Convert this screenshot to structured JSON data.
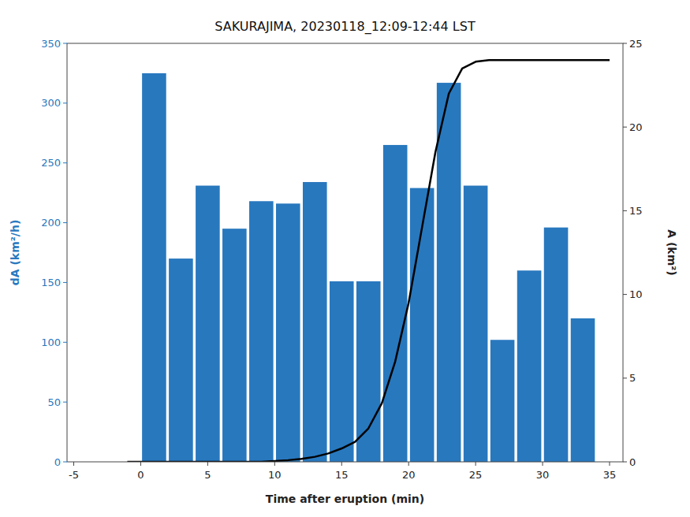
{
  "chart_data": {
    "type": "bar",
    "title": "SAKURAJIMA, 20230118_12:09-12:44 LST",
    "x_label": "Time after eruption (min)",
    "y_label": "dA (km²/h)",
    "y2_label": "A (km²)",
    "xlim": [
      -5.5,
      36
    ],
    "xticks": [
      -5,
      0,
      5,
      10,
      15,
      20,
      25,
      30,
      35
    ],
    "ylim": [
      0,
      350
    ],
    "yticks": [
      0,
      50,
      100,
      150,
      200,
      250,
      300,
      350
    ],
    "y2lim": [
      0,
      25
    ],
    "y2ticks": [
      0,
      5,
      10,
      15,
      20,
      25
    ],
    "grid": false,
    "series": [
      {
        "type": "bar",
        "color": "#2878be",
        "x": [
          1,
          3,
          5,
          7,
          9,
          11,
          13,
          15,
          17,
          19,
          21,
          23,
          25,
          27,
          29,
          31,
          33
        ],
        "values": [
          325,
          170,
          231,
          195,
          218,
          216,
          234,
          151,
          151,
          265,
          229,
          317,
          231,
          102,
          160,
          196,
          120
        ]
      },
      {
        "type": "line",
        "axis": "y2",
        "color": "#000000",
        "x": [
          -1,
          0,
          1,
          2,
          3,
          4,
          5,
          6,
          7,
          8,
          9,
          10,
          11,
          12,
          13,
          14,
          15,
          16,
          17,
          18,
          19,
          20,
          21,
          22,
          23,
          24,
          25,
          26,
          27,
          28,
          29,
          30,
          31,
          32,
          33,
          34,
          35
        ],
        "values": [
          0,
          0,
          0,
          0,
          0,
          0,
          0,
          0,
          0,
          0,
          0,
          0.05,
          0.1,
          0.18,
          0.3,
          0.5,
          0.8,
          1.2,
          2.0,
          3.5,
          6.0,
          9.5,
          14.0,
          18.5,
          22.0,
          23.5,
          23.9,
          24.0,
          24.0,
          24.0,
          24.0,
          24.0,
          24.0,
          24.0,
          24.0,
          24.0,
          24.0
        ]
      }
    ]
  }
}
